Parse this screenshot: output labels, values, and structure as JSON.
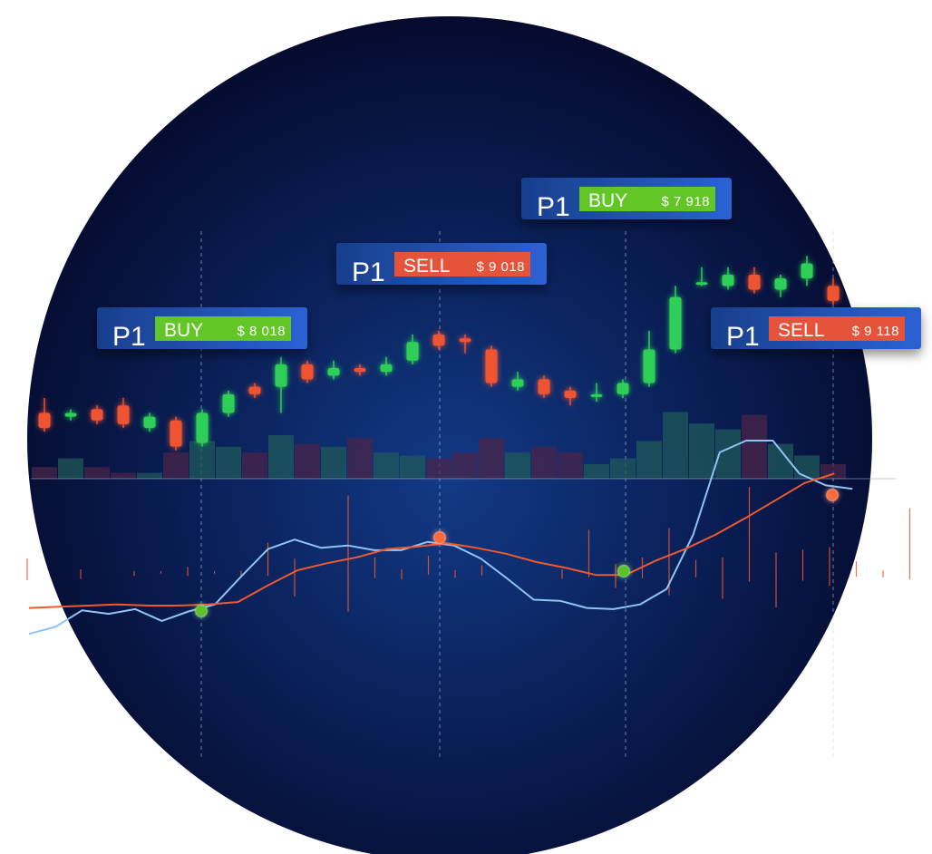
{
  "colors": {
    "background_outer": "#ffffff",
    "circle_center": "#123a86",
    "circle_mid": "#0a1f57",
    "circle_edge": "#050b2e",
    "bull": "#2fcf57",
    "bear": "#ee5331",
    "volume_bull": "#1f5a5a",
    "volume_bear": "#4a2448",
    "fast_line": "#8fc4f4",
    "slow_line": "#ee5a2e",
    "buy_badge": "#62c727",
    "sell_badge": "#e6533a",
    "label_box": "#183f8c",
    "label_box_light": "#2a62d4",
    "label_text": "#ffffff",
    "buy_marker": "#5cc22a",
    "sell_marker": "#ff6a3a",
    "divider": "#9aa7bf"
  },
  "chart_data": {
    "type": "candlestick",
    "title": "",
    "xlabel": "",
    "ylabel": "",
    "candles": [
      {
        "o": 87,
        "c": 83,
        "h": 91,
        "l": 82
      },
      {
        "o": 86,
        "c": 87,
        "h": 88,
        "l": 85
      },
      {
        "o": 88,
        "c": 85,
        "h": 89,
        "l": 84
      },
      {
        "o": 89,
        "c": 84,
        "h": 91,
        "l": 83
      },
      {
        "o": 83,
        "c": 86,
        "h": 87,
        "l": 82
      },
      {
        "o": 85,
        "c": 78,
        "h": 86,
        "l": 77
      },
      {
        "o": 79,
        "c": 87,
        "h": 88,
        "l": 78
      },
      {
        "o": 87,
        "c": 92,
        "h": 93,
        "l": 86
      },
      {
        "o": 94,
        "c": 92,
        "h": 95,
        "l": 91
      },
      {
        "o": 94,
        "c": 100,
        "h": 102,
        "l": 87
      },
      {
        "o": 100,
        "c": 96,
        "h": 101,
        "l": 95
      },
      {
        "o": 97,
        "c": 99,
        "h": 101,
        "l": 96
      },
      {
        "o": 99,
        "c": 98,
        "h": 100,
        "l": 97
      },
      {
        "o": 98,
        "c": 100,
        "h": 102,
        "l": 97
      },
      {
        "o": 101,
        "c": 106,
        "h": 108,
        "l": 100
      },
      {
        "o": 108,
        "c": 105,
        "h": 109,
        "l": 104
      },
      {
        "o": 107,
        "c": 106,
        "h": 108,
        "l": 103
      },
      {
        "o": 104,
        "c": 95,
        "h": 105,
        "l": 94
      },
      {
        "o": 94,
        "c": 96,
        "h": 98,
        "l": 93
      },
      {
        "o": 96,
        "c": 92,
        "h": 97,
        "l": 91
      },
      {
        "o": 93,
        "c": 91,
        "h": 94,
        "l": 89
      },
      {
        "o": 92,
        "c": 92,
        "h": 95,
        "l": 90
      },
      {
        "o": 92,
        "c": 95,
        "h": 96,
        "l": 91
      },
      {
        "o": 95,
        "c": 104,
        "h": 109,
        "l": 94
      },
      {
        "o": 104,
        "c": 118,
        "h": 121,
        "l": 103
      },
      {
        "o": 122,
        "c": 122,
        "h": 126,
        "l": 121
      },
      {
        "o": 121,
        "c": 124,
        "h": 126,
        "l": 120
      },
      {
        "o": 124,
        "c": 120,
        "h": 126,
        "l": 119
      },
      {
        "o": 120,
        "c": 123,
        "h": 124,
        "l": 118
      },
      {
        "o": 123,
        "c": 127,
        "h": 129,
        "l": 121
      },
      {
        "o": 121,
        "c": 117,
        "h": 123,
        "l": 116
      }
    ],
    "volume": [
      4,
      7,
      4,
      2,
      2,
      9,
      13,
      11,
      9,
      15,
      12,
      11,
      14,
      9,
      8,
      7,
      9,
      14,
      9,
      11,
      9,
      5,
      7,
      13,
      23,
      19,
      17,
      22,
      12,
      8,
      5
    ],
    "fast_line": [
      16,
      22,
      36,
      33,
      37,
      27,
      35,
      41,
      65,
      88,
      96,
      89,
      91,
      87,
      87,
      94,
      91,
      80,
      63,
      45,
      44,
      38,
      37,
      41,
      54,
      100,
      170,
      180,
      180,
      152,
      142,
      139
    ],
    "slow_line": [
      38,
      39,
      40,
      41,
      40,
      40,
      41,
      43,
      57,
      70,
      76,
      81,
      88,
      90,
      93,
      89,
      84,
      77,
      72,
      66,
      66,
      78,
      88,
      100,
      114,
      129,
      144,
      152
    ],
    "histogram": [
      -17,
      0,
      -14,
      0,
      -7,
      -7,
      -7,
      -7,
      -9,
      -35,
      -55,
      0,
      -90,
      -60,
      -15,
      -20,
      -11,
      -30,
      0,
      0,
      -14,
      -50,
      -35,
      -60,
      -52,
      -50,
      -60,
      -100,
      -80,
      -90,
      -30,
      -45,
      -10,
      -75,
      -5
    ],
    "signals": [
      {
        "type": "BUY",
        "label": "P1",
        "price": "$ 8 018",
        "bar": 6
      },
      {
        "type": "SELL",
        "label": "P1",
        "price": "$ 9 018",
        "bar": 15
      },
      {
        "type": "BUY",
        "label": "P1",
        "price": "$ 7 918",
        "bar": 22
      },
      {
        "type": "SELL",
        "label": "P1",
        "price": "$ 9 118",
        "bar": 30
      }
    ]
  }
}
